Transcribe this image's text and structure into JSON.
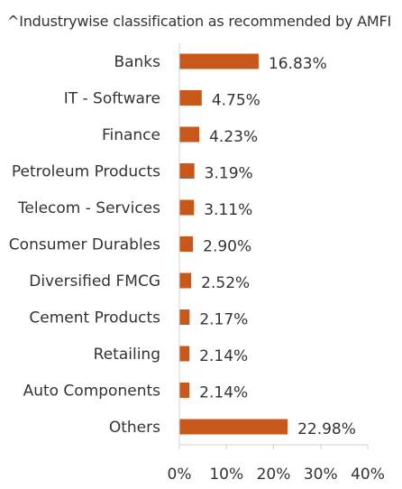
{
  "chart_data": {
    "type": "bar",
    "orientation": "horizontal",
    "title": "^Industrywise classification as recommended by AMFI",
    "categories": [
      "Banks",
      "IT - Software",
      "Finance",
      "Petroleum Products",
      "Telecom - Services",
      "Consumer Durables",
      "Diversified FMCG",
      "Cement Products",
      "Retailing",
      "Auto Components",
      "Others"
    ],
    "values": [
      16.83,
      4.75,
      4.23,
      3.19,
      3.11,
      2.9,
      2.52,
      2.17,
      2.14,
      2.14,
      22.98
    ],
    "value_labels": [
      "16.83%",
      "4.75%",
      "4.23%",
      "3.19%",
      "3.11%",
      "2.90%",
      "2.52%",
      "2.17%",
      "2.14%",
      "2.14%",
      "22.98%"
    ],
    "xlim": [
      0,
      40
    ],
    "x_ticks": [
      0,
      10,
      20,
      30,
      40
    ],
    "x_tick_labels": [
      "0%",
      "10%",
      "20%",
      "30%",
      "40%"
    ],
    "xlabel": "",
    "ylabel": "",
    "grid": false,
    "legend": "none",
    "bar_color": "#C8571B"
  }
}
